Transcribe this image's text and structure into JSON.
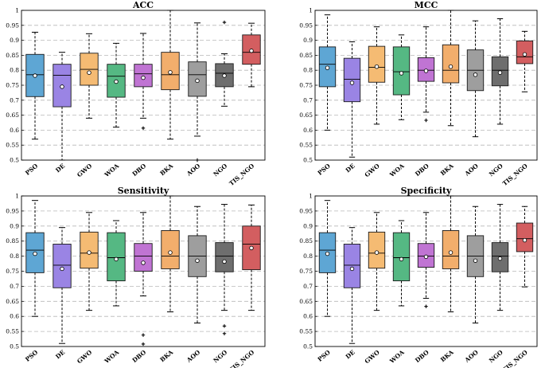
{
  "figure": {
    "panel_count": 4
  },
  "chart_data": [
    {
      "type": "boxplot",
      "title": "ACC",
      "ylim": [
        0.5,
        1.0
      ],
      "yticks": [
        "0.5",
        "0.55",
        "0.6",
        "0.65",
        "0.7",
        "0.75",
        "0.8",
        "0.85",
        "0.9",
        "0.95",
        "1"
      ],
      "grid": "horizontal dashed",
      "categories": [
        "PSO",
        "DE",
        "GWO",
        "WOA",
        "DBO",
        "BKA",
        "AOO",
        "NGO",
        "TIS_NGO"
      ],
      "colors": [
        "#5ea6d4",
        "#9a84e4",
        "#f5bb73",
        "#55b883",
        "#c074d3",
        "#f2ae6c",
        "#9e9e9e",
        "#6e6e6e",
        "#d35e60"
      ],
      "boxes": [
        {
          "name": "PSO",
          "whisker_low": 0.57,
          "q1": 0.712,
          "median": 0.785,
          "q3": 0.853,
          "whisker_high": 0.927,
          "mean": 0.782,
          "outliers": []
        },
        {
          "name": "DE",
          "whisker_low": 0.5,
          "q1": 0.678,
          "median": 0.783,
          "q3": 0.82,
          "whisker_high": 0.86,
          "mean": 0.745,
          "outliers": []
        },
        {
          "name": "GWO",
          "whisker_low": 0.64,
          "q1": 0.75,
          "median": 0.803,
          "q3": 0.857,
          "whisker_high": 0.922,
          "mean": 0.792,
          "outliers": []
        },
        {
          "name": "WOA",
          "whisker_low": 0.61,
          "q1": 0.71,
          "median": 0.78,
          "q3": 0.82,
          "whisker_high": 0.89,
          "mean": 0.762,
          "outliers": []
        },
        {
          "name": "DBO",
          "whisker_low": 0.64,
          "q1": 0.745,
          "median": 0.788,
          "q3": 0.82,
          "whisker_high": 0.923,
          "mean": 0.775,
          "outliers": [
            0.607
          ]
        },
        {
          "name": "BKA",
          "whisker_low": 0.57,
          "q1": 0.735,
          "median": 0.785,
          "q3": 0.86,
          "whisker_high": 1.0,
          "mean": 0.793,
          "outliers": []
        },
        {
          "name": "AOO",
          "whisker_low": 0.58,
          "q1": 0.713,
          "median": 0.785,
          "q3": 0.828,
          "whisker_high": 0.958,
          "mean": 0.765,
          "outliers": [
            0.5
          ]
        },
        {
          "name": "NGO",
          "whisker_low": 0.68,
          "q1": 0.745,
          "median": 0.79,
          "q3": 0.822,
          "whisker_high": 0.855,
          "mean": 0.782,
          "outliers": [
            0.96
          ]
        },
        {
          "name": "TIS_NGO",
          "whisker_low": 0.745,
          "q1": 0.82,
          "median": 0.86,
          "q3": 0.918,
          "whisker_high": 0.957,
          "mean": 0.865,
          "outliers": []
        }
      ]
    },
    {
      "type": "boxplot",
      "title": "MCC",
      "ylim": [
        0.5,
        1.0
      ],
      "yticks": [
        "0.5",
        "0.55",
        "0.6",
        "0.65",
        "0.7",
        "0.75",
        "0.8",
        "0.85",
        "0.9",
        "0.95",
        "1"
      ],
      "grid": "horizontal dashed",
      "categories": [
        "PSO",
        "DE",
        "GWO",
        "WOA",
        "DBO",
        "BKA",
        "AOO",
        "NGO",
        "TIS_NGO"
      ],
      "colors": [
        "#5ea6d4",
        "#9a84e4",
        "#f5bb73",
        "#55b883",
        "#c074d3",
        "#f2ae6c",
        "#9e9e9e",
        "#6e6e6e",
        "#d35e60"
      ],
      "boxes": [
        {
          "name": "PSO",
          "whisker_low": 0.6,
          "q1": 0.745,
          "median": 0.82,
          "q3": 0.878,
          "whisker_high": 0.985,
          "mean": 0.808,
          "outliers": []
        },
        {
          "name": "DE",
          "whisker_low": 0.51,
          "q1": 0.695,
          "median": 0.77,
          "q3": 0.84,
          "whisker_high": 0.895,
          "mean": 0.758,
          "outliers": []
        },
        {
          "name": "GWO",
          "whisker_low": 0.62,
          "q1": 0.76,
          "median": 0.81,
          "q3": 0.88,
          "whisker_high": 0.945,
          "mean": 0.812,
          "outliers": []
        },
        {
          "name": "WOA",
          "whisker_low": 0.635,
          "q1": 0.718,
          "median": 0.795,
          "q3": 0.878,
          "whisker_high": 0.918,
          "mean": 0.79,
          "outliers": []
        },
        {
          "name": "DBO",
          "whisker_low": 0.66,
          "q1": 0.763,
          "median": 0.8,
          "q3": 0.842,
          "whisker_high": 0.945,
          "mean": 0.798,
          "outliers": [
            0.633
          ]
        },
        {
          "name": "BKA",
          "whisker_low": 0.615,
          "q1": 0.758,
          "median": 0.8,
          "q3": 0.885,
          "whisker_high": 1.0,
          "mean": 0.812,
          "outliers": []
        },
        {
          "name": "AOO",
          "whisker_low": 0.578,
          "q1": 0.732,
          "median": 0.8,
          "q3": 0.868,
          "whisker_high": 0.965,
          "mean": 0.785,
          "outliers": []
        },
        {
          "name": "NGO",
          "whisker_low": 0.62,
          "q1": 0.748,
          "median": 0.8,
          "q3": 0.845,
          "whisker_high": 0.972,
          "mean": 0.792,
          "outliers": []
        },
        {
          "name": "TIS_NGO",
          "whisker_low": 0.728,
          "q1": 0.822,
          "median": 0.845,
          "q3": 0.898,
          "whisker_high": 0.93,
          "mean": 0.853,
          "outliers": []
        }
      ]
    },
    {
      "type": "boxplot",
      "title": "Sensitivity",
      "ylim": [
        0.5,
        1.0
      ],
      "yticks": [
        "0.5",
        "0.55",
        "0.6",
        "0.65",
        "0.7",
        "0.75",
        "0.8",
        "0.85",
        "0.9",
        "0.95",
        "1"
      ],
      "grid": "horizontal dashed",
      "categories": [
        "PSO",
        "DE",
        "GWO",
        "WOA",
        "DBO",
        "BKA",
        "AOO",
        "NGO",
        "TIS_NGO"
      ],
      "colors": [
        "#5ea6d4",
        "#9a84e4",
        "#f5bb73",
        "#55b883",
        "#c074d3",
        "#f2ae6c",
        "#9e9e9e",
        "#6e6e6e",
        "#d35e60"
      ],
      "boxes": [
        {
          "name": "PSO",
          "whisker_low": 0.6,
          "q1": 0.745,
          "median": 0.82,
          "q3": 0.878,
          "whisker_high": 0.985,
          "mean": 0.808,
          "outliers": []
        },
        {
          "name": "DE",
          "whisker_low": 0.51,
          "q1": 0.695,
          "median": 0.77,
          "q3": 0.84,
          "whisker_high": 0.895,
          "mean": 0.758,
          "outliers": []
        },
        {
          "name": "GWO",
          "whisker_low": 0.62,
          "q1": 0.76,
          "median": 0.81,
          "q3": 0.88,
          "whisker_high": 0.945,
          "mean": 0.812,
          "outliers": []
        },
        {
          "name": "WOA",
          "whisker_low": 0.635,
          "q1": 0.718,
          "median": 0.795,
          "q3": 0.878,
          "whisker_high": 0.918,
          "mean": 0.79,
          "outliers": []
        },
        {
          "name": "DBO",
          "whisker_low": 0.668,
          "q1": 0.75,
          "median": 0.8,
          "q3": 0.842,
          "whisker_high": 0.945,
          "mean": 0.778,
          "outliers": [
            0.538,
            0.508
          ]
        },
        {
          "name": "BKA",
          "whisker_low": 0.615,
          "q1": 0.758,
          "median": 0.8,
          "q3": 0.885,
          "whisker_high": 1.0,
          "mean": 0.812,
          "outliers": []
        },
        {
          "name": "AOO",
          "whisker_low": 0.578,
          "q1": 0.732,
          "median": 0.8,
          "q3": 0.868,
          "whisker_high": 0.965,
          "mean": 0.785,
          "outliers": []
        },
        {
          "name": "NGO",
          "whisker_low": 0.62,
          "q1": 0.748,
          "median": 0.8,
          "q3": 0.845,
          "whisker_high": 0.972,
          "mean": 0.782,
          "outliers": [
            0.568,
            0.543
          ]
        },
        {
          "name": "TIS_NGO",
          "whisker_low": 0.62,
          "q1": 0.755,
          "median": 0.84,
          "q3": 0.9,
          "whisker_high": 0.97,
          "mean": 0.827,
          "outliers": []
        }
      ]
    },
    {
      "type": "boxplot",
      "title": "Specificity",
      "ylim": [
        0.5,
        1.0
      ],
      "yticks": [
        "0.5",
        "0.55",
        "0.6",
        "0.65",
        "0.7",
        "0.75",
        "0.8",
        "0.85",
        "0.9",
        "0.95",
        "1"
      ],
      "grid": "horizontal dashed",
      "categories": [
        "PSO",
        "DE",
        "GWO",
        "WOA",
        "DBO",
        "BKA",
        "AOO",
        "NGO",
        "TIS_NGO"
      ],
      "colors": [
        "#5ea6d4",
        "#9a84e4",
        "#f5bb73",
        "#55b883",
        "#c074d3",
        "#f2ae6c",
        "#9e9e9e",
        "#6e6e6e",
        "#d35e60"
      ],
      "boxes": [
        {
          "name": "PSO",
          "whisker_low": 0.6,
          "q1": 0.745,
          "median": 0.82,
          "q3": 0.878,
          "whisker_high": 0.985,
          "mean": 0.808,
          "outliers": []
        },
        {
          "name": "DE",
          "whisker_low": 0.51,
          "q1": 0.695,
          "median": 0.77,
          "q3": 0.84,
          "whisker_high": 0.895,
          "mean": 0.758,
          "outliers": []
        },
        {
          "name": "GWO",
          "whisker_low": 0.62,
          "q1": 0.76,
          "median": 0.81,
          "q3": 0.88,
          "whisker_high": 0.945,
          "mean": 0.812,
          "outliers": []
        },
        {
          "name": "WOA",
          "whisker_low": 0.635,
          "q1": 0.718,
          "median": 0.795,
          "q3": 0.878,
          "whisker_high": 0.918,
          "mean": 0.79,
          "outliers": []
        },
        {
          "name": "DBO",
          "whisker_low": 0.66,
          "q1": 0.763,
          "median": 0.8,
          "q3": 0.842,
          "whisker_high": 0.945,
          "mean": 0.798,
          "outliers": [
            0.633
          ]
        },
        {
          "name": "BKA",
          "whisker_low": 0.615,
          "q1": 0.758,
          "median": 0.8,
          "q3": 0.885,
          "whisker_high": 1.0,
          "mean": 0.812,
          "outliers": []
        },
        {
          "name": "AOO",
          "whisker_low": 0.578,
          "q1": 0.732,
          "median": 0.8,
          "q3": 0.868,
          "whisker_high": 0.965,
          "mean": 0.785,
          "outliers": []
        },
        {
          "name": "NGO",
          "whisker_low": 0.62,
          "q1": 0.748,
          "median": 0.8,
          "q3": 0.845,
          "whisker_high": 0.972,
          "mean": 0.792,
          "outliers": []
        },
        {
          "name": "TIS_NGO",
          "whisker_low": 0.698,
          "q1": 0.815,
          "median": 0.858,
          "q3": 0.91,
          "whisker_high": 0.965,
          "mean": 0.853,
          "outliers": []
        }
      ]
    }
  ]
}
